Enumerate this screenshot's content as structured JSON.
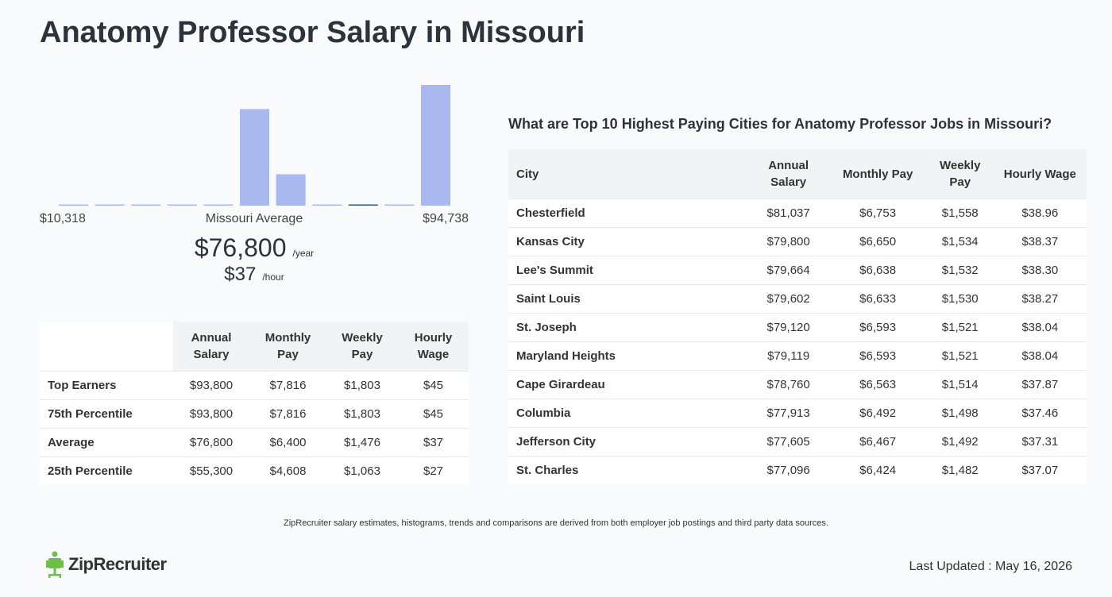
{
  "title": "Anatomy Professor Salary in Missouri",
  "histogram": {
    "type": "bar",
    "values": [
      1,
      1,
      1,
      1,
      1,
      80,
      26,
      1,
      1,
      1,
      100
    ],
    "colors": [
      "#a9b9f0",
      "#a9b9f0",
      "#a9b9f0",
      "#a9b9f0",
      "#a9b9f0",
      "#a9b9f0",
      "#a9b9f0",
      "#a9b9f0",
      "#34558b",
      "#a9b9f0",
      "#a9b9f0"
    ],
    "ylim": [
      0,
      100
    ],
    "min_label": "$10,318",
    "average_label": "Missouri Average",
    "max_label": "$94,738"
  },
  "average": {
    "annual": "$76,800",
    "annual_unit": "/year",
    "hourly": "$37",
    "hourly_unit": "/hour"
  },
  "percentile_table": {
    "columns": [
      "Annual Salary",
      "Monthly Pay",
      "Weekly Pay",
      "Hourly Wage"
    ],
    "rows": [
      {
        "label": "Top Earners",
        "cells": [
          "$93,800",
          "$7,816",
          "$1,803",
          "$45"
        ]
      },
      {
        "label": "75th Percentile",
        "cells": [
          "$93,800",
          "$7,816",
          "$1,803",
          "$45"
        ]
      },
      {
        "label": "Average",
        "cells": [
          "$76,800",
          "$6,400",
          "$1,476",
          "$37"
        ]
      },
      {
        "label": "25th Percentile",
        "cells": [
          "$55,300",
          "$4,608",
          "$1,063",
          "$27"
        ]
      }
    ]
  },
  "cities_table": {
    "title": "What are Top 10 Highest Paying Cities for Anatomy Professor Jobs in Missouri?",
    "columns": [
      "City",
      "Annual Salary",
      "Monthly Pay",
      "Weekly Pay",
      "Hourly Wage"
    ],
    "rows": [
      [
        "Chesterfield",
        "$81,037",
        "$6,753",
        "$1,558",
        "$38.96"
      ],
      [
        "Kansas City",
        "$79,800",
        "$6,650",
        "$1,534",
        "$38.37"
      ],
      [
        "Lee's Summit",
        "$79,664",
        "$6,638",
        "$1,532",
        "$38.30"
      ],
      [
        "Saint Louis",
        "$79,602",
        "$6,633",
        "$1,530",
        "$38.27"
      ],
      [
        "St. Joseph",
        "$79,120",
        "$6,593",
        "$1,521",
        "$38.04"
      ],
      [
        "Maryland Heights",
        "$79,119",
        "$6,593",
        "$1,521",
        "$38.04"
      ],
      [
        "Cape Girardeau",
        "$78,760",
        "$6,563",
        "$1,514",
        "$37.87"
      ],
      [
        "Columbia",
        "$77,913",
        "$6,492",
        "$1,498",
        "$37.46"
      ],
      [
        "Jefferson City",
        "$77,605",
        "$6,467",
        "$1,492",
        "$37.31"
      ],
      [
        "St. Charles",
        "$77,096",
        "$6,424",
        "$1,482",
        "$37.07"
      ]
    ]
  },
  "footnote": "ZipRecruiter salary estimates, histograms, trends and comparisons are derived from both employer job postings and third party data sources.",
  "logo": "ZipRecruiter",
  "last_updated": "Last Updated : May 16, 2026"
}
